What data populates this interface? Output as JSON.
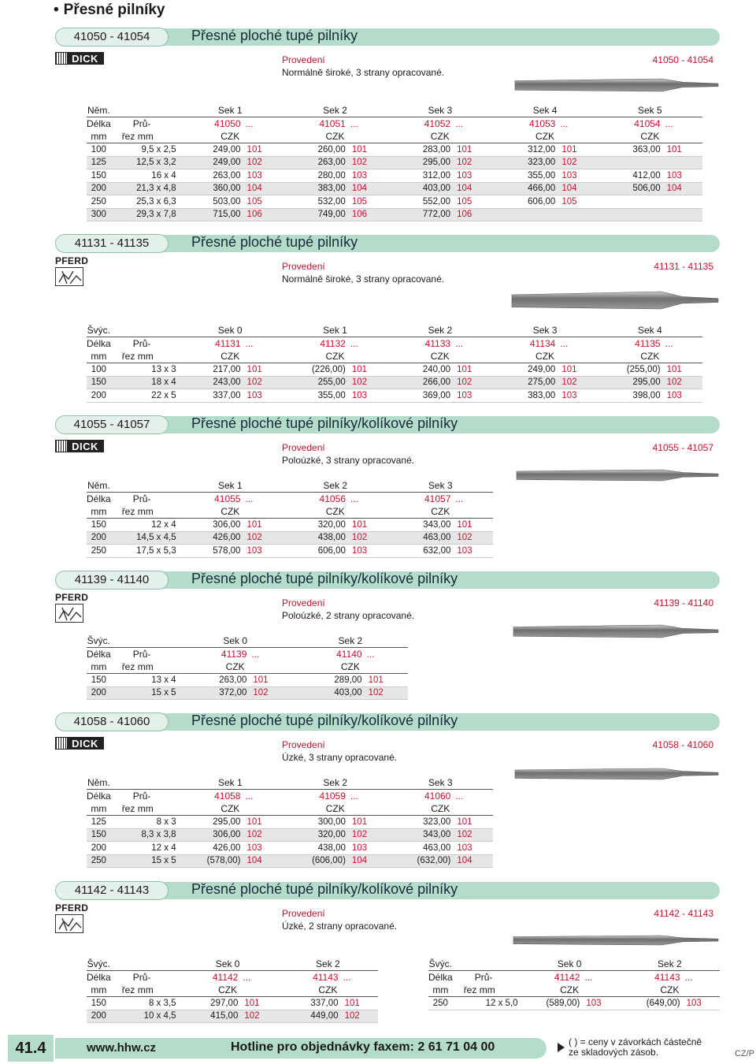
{
  "page_title": "Přesné pilníky",
  "provedeni_label": "Provedení",
  "sections": [
    {
      "code": "41050 - 41054",
      "title": "Přesné ploché tupé pilníky",
      "brand": "DICK",
      "prov_code": "41050 - 41054",
      "desc": "Normálně široké, 3 strany opracované.",
      "h1": [
        "Něm.",
        "",
        "Sek 1",
        "Sek 2",
        "Sek 3",
        "Sek 4",
        "Sek 5"
      ],
      "h2": [
        "Délka",
        "Prů-",
        "41050",
        "41051",
        "41052",
        "41053",
        "41054"
      ],
      "h3": [
        "mm",
        "řez mm",
        "CZK",
        "CZK",
        "CZK",
        "CZK",
        "CZK"
      ],
      "rows": [
        [
          "100",
          "9,5 x 2,5",
          "249,00",
          "101",
          "260,00",
          "101",
          "283,00",
          "101",
          "312,00",
          "101",
          "363,00",
          "101"
        ],
        [
          "125",
          "12,5 x 3,2",
          "249,00",
          "102",
          "263,00",
          "102",
          "295,00",
          "102",
          "323,00",
          "102",
          "",
          ""
        ],
        [
          "150",
          "16 x 4",
          "263,00",
          "103",
          "280,00",
          "103",
          "312,00",
          "103",
          "355,00",
          "103",
          "412,00",
          "103"
        ],
        [
          "200",
          "21,3 x 4,8",
          "360,00",
          "104",
          "383,00",
          "104",
          "403,00",
          "104",
          "466,00",
          "104",
          "506,00",
          "104"
        ],
        [
          "250",
          "25,3 x 6,3",
          "503,00",
          "105",
          "532,00",
          "105",
          "552,00",
          "105",
          "606,00",
          "105",
          "",
          ""
        ],
        [
          "300",
          "29,3 x 7,8",
          "715,00",
          "106",
          "749,00",
          "106",
          "772,00",
          "106",
          "",
          "",
          "",
          ""
        ]
      ]
    },
    {
      "code": "41131 - 41135",
      "title": "Přesné ploché tupé pilníky",
      "brand": "PFERD",
      "prov_code": "41131 - 41135",
      "desc": "Normálně široké, 3 strany opracované.",
      "h1": [
        "Švýc.",
        "",
        "Sek 0",
        "Sek 1",
        "Sek 2",
        "Sek 3",
        "Sek 4"
      ],
      "h2": [
        "Délka",
        "Prů-",
        "41131",
        "41132",
        "41133",
        "41134",
        "41135"
      ],
      "h3": [
        "mm",
        "řez mm",
        "CZK",
        "CZK",
        "CZK",
        "CZK",
        "CZK"
      ],
      "rows": [
        [
          "100",
          "13 x 3",
          "217,00",
          "101",
          "(226,00)",
          "101",
          "240,00",
          "101",
          "249,00",
          "101",
          "(255,00)",
          "101"
        ],
        [
          "150",
          "18 x 4",
          "243,00",
          "102",
          "255,00",
          "102",
          "266,00",
          "102",
          "275,00",
          "102",
          "295,00",
          "102"
        ],
        [
          "200",
          "22 x 5",
          "337,00",
          "103",
          "355,00",
          "103",
          "369,00",
          "103",
          "383,00",
          "103",
          "398,00",
          "103"
        ]
      ]
    },
    {
      "code": "41055 - 41057",
      "title": "Přesné ploché tupé pilníky/kolíkové pilníky",
      "brand": "DICK",
      "prov_code": "41055 - 41057",
      "desc": "Polоúzké, 3 strany opracované.",
      "h1": [
        "Něm.",
        "",
        "Sek 1",
        "Sek 2",
        "Sek 3"
      ],
      "h2": [
        "Délka",
        "Prů-",
        "41055",
        "41056",
        "41057"
      ],
      "h3": [
        "mm",
        "řez mm",
        "CZK",
        "CZK",
        "CZK"
      ],
      "rows": [
        [
          "150",
          "12 x 4",
          "306,00",
          "101",
          "320,00",
          "101",
          "343,00",
          "101"
        ],
        [
          "200",
          "14,5 x 4,5",
          "426,00",
          "102",
          "438,00",
          "102",
          "463,00",
          "102"
        ],
        [
          "250",
          "17,5 x 5,3",
          "578,00",
          "103",
          "606,00",
          "103",
          "632,00",
          "103"
        ]
      ]
    },
    {
      "code": "41139 - 41140",
      "title": "Přesné ploché tupé pilníky/kolíkové pilníky",
      "brand": "PFERD",
      "prov_code": "41139 - 41140",
      "desc": "Poloúzké, 2 strany opracované.",
      "h1": [
        "Švýc.",
        "",
        "Sek 0",
        "Sek 2"
      ],
      "h2": [
        "Délka",
        "Prů-",
        "41139",
        "41140"
      ],
      "h3": [
        "mm",
        "řez mm",
        "CZK",
        "CZK"
      ],
      "rows": [
        [
          "150",
          "13 x 4",
          "263,00",
          "101",
          "289,00",
          "101"
        ],
        [
          "200",
          "15 x 5",
          "372,00",
          "102",
          "403,00",
          "102"
        ]
      ]
    },
    {
      "code": "41058 - 41060",
      "title": "Přesné ploché tupé pilníky/kolíkové pilníky",
      "brand": "DICK",
      "prov_code": "41058 - 41060",
      "desc": "Úzké, 3 strany opracované.",
      "h1": [
        "Něm.",
        "",
        "Sek 1",
        "Sek 2",
        "Sek 3"
      ],
      "h2": [
        "Délka",
        "Prů-",
        "41058",
        "41059",
        "41060"
      ],
      "h3": [
        "mm",
        "řez mm",
        "CZK",
        "CZK",
        "CZK"
      ],
      "rows": [
        [
          "125",
          "8 x 3",
          "295,00",
          "101",
          "300,00",
          "101",
          "323,00",
          "101"
        ],
        [
          "150",
          "8,3 x 3,8",
          "306,00",
          "102",
          "320,00",
          "102",
          "343,00",
          "102"
        ],
        [
          "200",
          "12 x 4",
          "426,00",
          "103",
          "438,00",
          "103",
          "463,00",
          "103"
        ],
        [
          "250",
          "15 x 5",
          "(578,00)",
          "104",
          "(606,00)",
          "104",
          "(632,00)",
          "104"
        ]
      ]
    },
    {
      "code": "41142 - 41143",
      "title": "Přesné ploché tupé pilníky/kolíkové pilníky",
      "brand": "PFERD",
      "prov_code": "41142 - 41143",
      "desc": "Úzké, 2 strany opracované.",
      "h1": [
        "Švýc.",
        "",
        "Sek 0",
        "Sek 2"
      ],
      "h2": [
        "Délka",
        "Prů-",
        "41142",
        "41143"
      ],
      "h3": [
        "mm",
        "řez mm",
        "CZK",
        "CZK"
      ],
      "rows": [
        [
          "150",
          "8 x 3,5",
          "297,00",
          "101",
          "337,00",
          "101"
        ],
        [
          "200",
          "10 x 4,5",
          "415,00",
          "102",
          "449,00",
          "102"
        ]
      ],
      "h1b": [
        "Švýc.",
        "",
        "Sek 0",
        "Sek 2"
      ],
      "h2b": [
        "Délka",
        "Prů-",
        "41142",
        "41143"
      ],
      "h3b": [
        "mm",
        "řez mm",
        "CZK",
        "CZK"
      ],
      "rowsb": [
        [
          "250",
          "12 x 5,0",
          "(589,00)",
          "103",
          "(649,00)",
          "103"
        ]
      ]
    }
  ],
  "footer": {
    "page": "41.4",
    "url": "www.hhw.cz",
    "hotline": "Hotline pro objednávky faxem: 2 61 71 04 00",
    "note_line1": "( ) = ceny v závorkách částečně",
    "note_line2": "ze skladových zásob.",
    "lang": "CZ/P"
  }
}
